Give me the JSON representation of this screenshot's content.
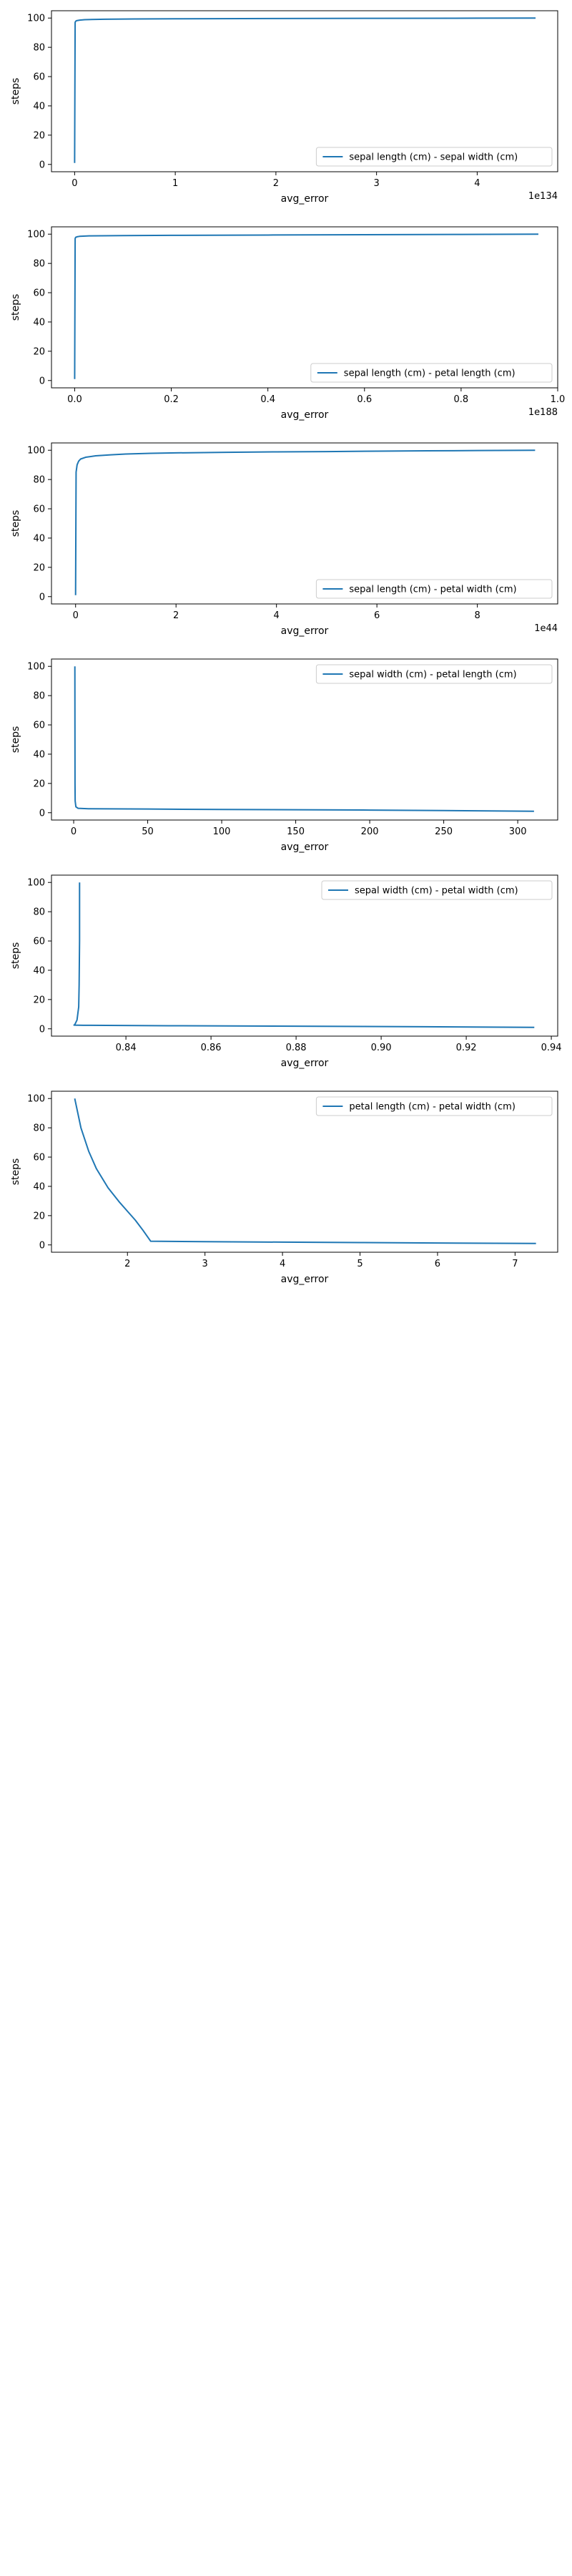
{
  "figure": {
    "background": "#ffffff",
    "line_color": "#1f77b4"
  },
  "chart_data": [
    {
      "type": "line",
      "xlabel": "avg_error",
      "ylabel": "steps",
      "x_offset_label": "1e134",
      "xlim": [
        -0.23,
        4.8
      ],
      "ylim": [
        -5,
        105
      ],
      "xticks": [
        0,
        1,
        2,
        3,
        4
      ],
      "xtick_labels": [
        "0",
        "1",
        "2",
        "3",
        "4"
      ],
      "yticks": [
        0,
        20,
        40,
        60,
        80,
        100
      ],
      "ytick_labels": [
        "0",
        "20",
        "40",
        "60",
        "80",
        "100"
      ],
      "legend_position": "lower right",
      "grid": false,
      "series": [
        {
          "name": "sepal length (cm) - sepal width (cm)",
          "x": [
            0,
            0.005,
            0.01,
            0.02,
            0.05,
            0.1,
            0.3,
            0.6,
            1.0,
            2.0,
            3.0,
            4.0,
            4.58
          ],
          "y": [
            1,
            97,
            97.8,
            98.2,
            98.6,
            98.9,
            99.2,
            99.4,
            99.5,
            99.7,
            99.8,
            99.9,
            100
          ]
        }
      ]
    },
    {
      "type": "line",
      "xlabel": "avg_error",
      "ylabel": "steps",
      "x_offset_label": "1e188",
      "xlim": [
        -0.048,
        1.0
      ],
      "ylim": [
        -5,
        105
      ],
      "xticks": [
        0,
        0.2,
        0.4,
        0.6,
        0.8,
        1.0
      ],
      "xtick_labels": [
        "0.0",
        "0.2",
        "0.4",
        "0.6",
        "0.8",
        "1.0"
      ],
      "yticks": [
        0,
        20,
        40,
        60,
        80,
        100
      ],
      "ytick_labels": [
        "0",
        "20",
        "40",
        "60",
        "80",
        "100"
      ],
      "legend_position": "lower right",
      "grid": false,
      "series": [
        {
          "name": "sepal length (cm) - petal length (cm)",
          "x": [
            0,
            0.001,
            0.002,
            0.005,
            0.01,
            0.03,
            0.1,
            0.2,
            0.4,
            0.6,
            0.8,
            0.96
          ],
          "y": [
            1,
            97,
            97.8,
            98.2,
            98.5,
            98.8,
            99.0,
            99.2,
            99.4,
            99.6,
            99.8,
            100
          ]
        }
      ]
    },
    {
      "type": "line",
      "xlabel": "avg_error",
      "ylabel": "steps",
      "x_offset_label": "1e44",
      "xlim": [
        -0.48,
        9.6
      ],
      "ylim": [
        -5,
        105
      ],
      "xticks": [
        0,
        2,
        4,
        6,
        8
      ],
      "xtick_labels": [
        "0",
        "2",
        "4",
        "6",
        "8"
      ],
      "yticks": [
        0,
        20,
        40,
        60,
        80,
        100
      ],
      "ytick_labels": [
        "0",
        "20",
        "40",
        "60",
        "80",
        "100"
      ],
      "legend_position": "lower right",
      "grid": false,
      "series": [
        {
          "name": "sepal length (cm) - petal width (cm)",
          "x": [
            0,
            0.01,
            0.03,
            0.06,
            0.1,
            0.2,
            0.4,
            0.7,
            1.0,
            1.5,
            2.0,
            3.0,
            4.0,
            5.0,
            6.0,
            7.0,
            8.0,
            9.15
          ],
          "y": [
            1,
            85,
            90,
            92.5,
            94,
            95.2,
            96.2,
            96.9,
            97.4,
            97.9,
            98.2,
            98.6,
            98.9,
            99.1,
            99.4,
            99.6,
            99.8,
            100
          ]
        }
      ]
    },
    {
      "type": "line",
      "xlabel": "avg_error",
      "ylabel": "steps",
      "x_offset_label": "",
      "xlim": [
        -15,
        327
      ],
      "ylim": [
        -5,
        105
      ],
      "xticks": [
        0,
        50,
        100,
        150,
        200,
        250,
        300
      ],
      "xtick_labels": [
        "0",
        "50",
        "100",
        "150",
        "200",
        "250",
        "300"
      ],
      "yticks": [
        0,
        20,
        40,
        60,
        80,
        100
      ],
      "ytick_labels": [
        "0",
        "20",
        "40",
        "60",
        "80",
        "100"
      ],
      "legend_position": "upper right",
      "grid": false,
      "series": [
        {
          "name": "sepal width (cm) - petal length (cm)",
          "x": [
            0.8,
            0.85,
            0.9,
            1.0,
            1.5,
            3,
            10,
            50,
            100,
            150,
            200,
            250,
            311
          ],
          "y": [
            100,
            60,
            20,
            8,
            4,
            3,
            2.7,
            2.5,
            2.2,
            2.0,
            1.8,
            1.5,
            1
          ]
        }
      ]
    },
    {
      "type": "line",
      "xlabel": "avg_error",
      "ylabel": "steps",
      "x_offset_label": "",
      "xlim": [
        0.8225,
        0.9415
      ],
      "ylim": [
        -5,
        105
      ],
      "xticks": [
        0.84,
        0.86,
        0.88,
        0.9,
        0.92,
        0.94
      ],
      "xtick_labels": [
        "0.84",
        "0.86",
        "0.88",
        "0.90",
        "0.92",
        "0.94"
      ],
      "yticks": [
        0,
        20,
        40,
        60,
        80,
        100
      ],
      "ytick_labels": [
        "0",
        "20",
        "40",
        "60",
        "80",
        "100"
      ],
      "legend_position": "upper right",
      "grid": false,
      "series": [
        {
          "name": "sepal width (cm) - petal width (cm)",
          "x": [
            0.8291,
            0.8291,
            0.829,
            0.8289,
            0.8285,
            0.828,
            0.8278,
            0.83,
            0.85,
            0.88,
            0.91,
            0.936
          ],
          "y": [
            100,
            60,
            30,
            15,
            6,
            3,
            2.5,
            2.4,
            2.1,
            1.8,
            1.4,
            1
          ]
        }
      ]
    },
    {
      "type": "line",
      "xlabel": "avg_error",
      "ylabel": "steps",
      "x_offset_label": "",
      "xlim": [
        1.02,
        7.55
      ],
      "ylim": [
        -5,
        105
      ],
      "xticks": [
        2,
        3,
        4,
        5,
        6,
        7
      ],
      "xtick_labels": [
        "2",
        "3",
        "4",
        "5",
        "6",
        "7"
      ],
      "yticks": [
        0,
        20,
        40,
        60,
        80,
        100
      ],
      "ytick_labels": [
        "0",
        "20",
        "40",
        "60",
        "80",
        "100"
      ],
      "legend_position": "upper right",
      "grid": false,
      "series": [
        {
          "name": "petal length (cm) - petal width (cm)",
          "x": [
            1.32,
            1.4,
            1.5,
            1.6,
            1.75,
            1.9,
            2.0,
            2.1,
            2.2,
            2.3,
            3.0,
            4.0,
            5.0,
            6.0,
            7.27
          ],
          "y": [
            100,
            80,
            64,
            52,
            39,
            29,
            23,
            17,
            10,
            2.5,
            2.2,
            1.9,
            1.6,
            1.3,
            1
          ]
        }
      ]
    }
  ]
}
